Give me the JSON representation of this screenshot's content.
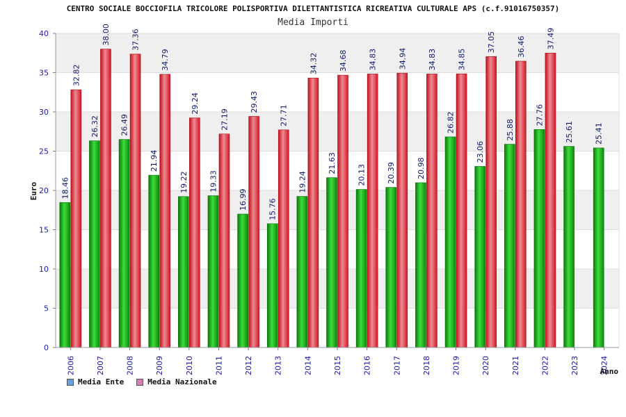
{
  "chart_data": {
    "type": "bar",
    "title": "CENTRO SOCIALE BOCCIOFILA TRICOLORE POLISPORTIVA DILETTANTISTICA RICREATIVA CULTURALE APS (c.f.91016750357)",
    "subtitle": "Media Importi",
    "xlabel": "Anno",
    "ylabel": "Euro",
    "ylim": [
      0,
      40
    ],
    "yticks": [
      0,
      5,
      10,
      15,
      20,
      25,
      30,
      35,
      40
    ],
    "ytick_labels": [
      "0",
      "5",
      "10",
      "15",
      "20",
      "25",
      "30",
      "35",
      "40"
    ],
    "grid": true,
    "legend_position": "bottom-left",
    "categories": [
      "2006",
      "2007",
      "2008",
      "2009",
      "2010",
      "2011",
      "2012",
      "2013",
      "2014",
      "2015",
      "2016",
      "2017",
      "2018",
      "2019",
      "2020",
      "2021",
      "2022",
      "2023",
      "2024"
    ],
    "series": [
      {
        "name": "Media Ente",
        "color": "#12b012",
        "legend_color": "#6aa0e0",
        "values": [
          18.46,
          26.32,
          26.49,
          21.94,
          19.22,
          19.33,
          16.99,
          15.76,
          19.24,
          21.63,
          20.13,
          20.39,
          20.98,
          26.82,
          23.06,
          25.88,
          27.76,
          25.61,
          25.41
        ],
        "labels": [
          "18.46",
          "26.32",
          "26.49",
          "21.94",
          "19.22",
          "19.33",
          "16.99",
          "15.76",
          "19.24",
          "21.63",
          "20.13",
          "20.39",
          "20.98",
          "26.82",
          "23.06",
          "25.88",
          "27.76",
          "25.61",
          "25.41"
        ]
      },
      {
        "name": "Media Nazionale",
        "color": "#e8202e",
        "legend_color": "#d77fb0",
        "values": [
          32.82,
          38.0,
          37.36,
          34.79,
          29.24,
          27.19,
          29.43,
          27.71,
          34.32,
          34.68,
          34.83,
          34.94,
          34.83,
          34.85,
          37.05,
          36.46,
          37.49,
          null,
          null
        ],
        "labels": [
          "32.82",
          "38.00",
          "37.36",
          "34.79",
          "29.24",
          "27.19",
          "29.43",
          "27.71",
          "34.32",
          "34.68",
          "34.83",
          "34.94",
          "34.83",
          "34.85",
          "37.05",
          "36.46",
          "37.49",
          null,
          null
        ]
      }
    ]
  }
}
